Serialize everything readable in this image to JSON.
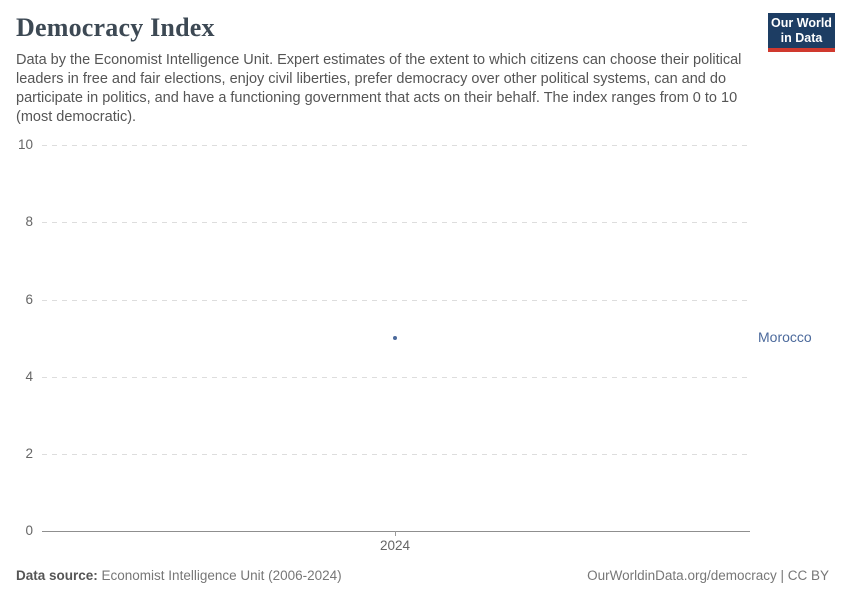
{
  "header": {
    "title": "Democracy Index",
    "subtitle": "Data by the Economist Intelligence Unit. Expert estimates of the extent to which citizens can choose their political leaders in free and fair elections, enjoy civil liberties, prefer democracy over other political systems, can and do participate in politics, and have a functioning government that acts on their behalf. The index ranges from 0 to 10 (most democratic)."
  },
  "logo": {
    "line1": "Our World",
    "line2": "in Data",
    "bg_color": "#1d3d63",
    "bar_color": "#d0392e"
  },
  "chart_data": {
    "type": "scatter",
    "title": "Democracy Index",
    "x": [
      2024
    ],
    "series": [
      {
        "name": "Morocco",
        "values": [
          5.0
        ],
        "color": "#4c6a9c"
      }
    ],
    "xlabel": "",
    "ylabel": "",
    "ylim": [
      0,
      10
    ],
    "xtick_label": "2024",
    "ytick_labels": [
      "10",
      "8",
      "6",
      "4",
      "2",
      "0"
    ],
    "grid": "horizontal dashed",
    "legend_position": "right-entity-label"
  },
  "entity_label": "Morocco",
  "footer": {
    "source_label": "Data source:",
    "source_value": " Economist Intelligence Unit (2006-2024)",
    "credit": "OurWorldinData.org/democracy | CC BY"
  }
}
